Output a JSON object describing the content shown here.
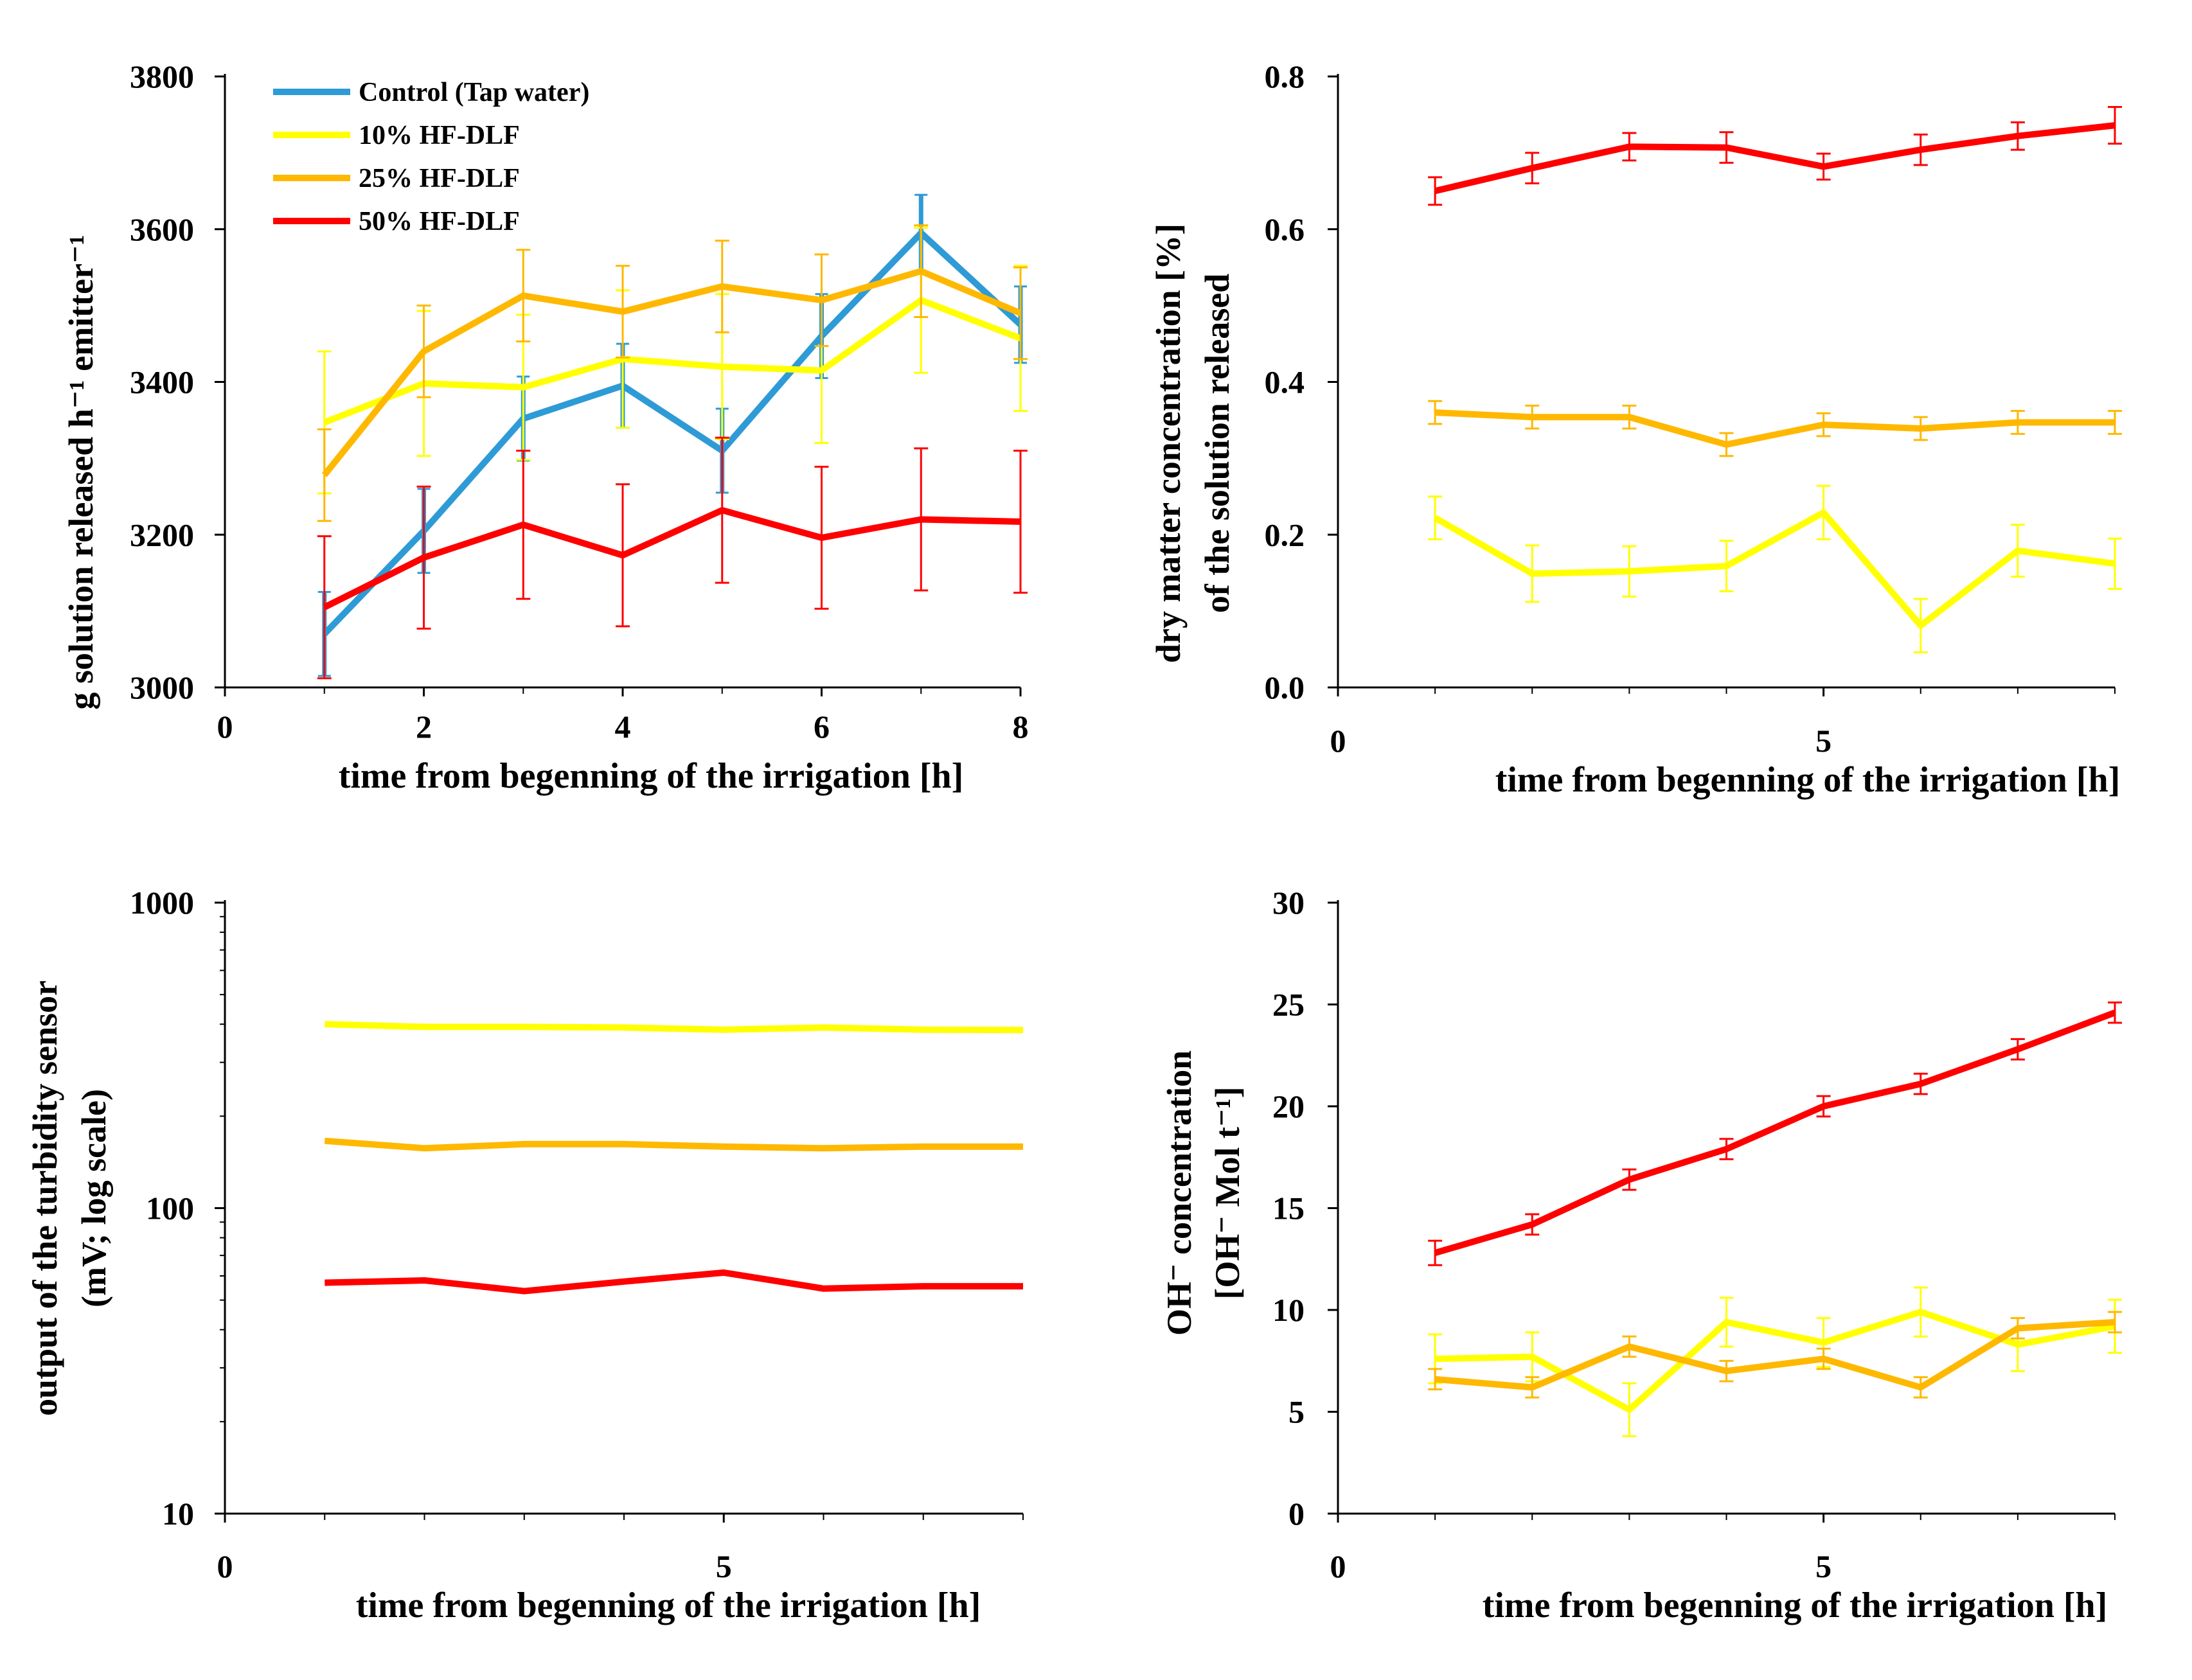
{
  "colors": {
    "control": "#2E9BD6",
    "hf10": "#FFFF00",
    "hf25": "#FFB800",
    "hf50": "#FF0000",
    "axis": "#000000"
  },
  "chart_data": [
    {
      "type": "line",
      "id": "solution_released",
      "xlabel": "time from begenning of the irrigation [h]",
      "ylabel": "g solution released h⁻¹ emitter⁻¹",
      "xlim": [
        0,
        8
      ],
      "ylim": [
        3000,
        3800
      ],
      "xticks": [
        0,
        2,
        4,
        6,
        8
      ],
      "yticks": [
        3000,
        3200,
        3400,
        3600,
        3800
      ],
      "legend_position": "top-left",
      "legend": [
        "Control (Tap water)",
        "10% HF-DLF",
        "25% HF-DLF",
        "50% HF-DLF"
      ],
      "x": [
        1,
        2,
        3,
        4,
        5,
        6,
        7,
        8
      ],
      "series": [
        {
          "name": "Control (Tap water)",
          "color_key": "control",
          "values": [
            3070,
            3205,
            3352,
            3395,
            3310,
            3460,
            3595,
            3475
          ],
          "errors": [
            55,
            55,
            55,
            55,
            55,
            55,
            50,
            50
          ]
        },
        {
          "name": "10% HF-DLF",
          "color_key": "hf10",
          "values": [
            3347,
            3398,
            3393,
            3430,
            3420,
            3415,
            3507,
            3457
          ],
          "errors": [
            93,
            95,
            95,
            90,
            95,
            95,
            95,
            95
          ]
        },
        {
          "name": "25% HF-DLF",
          "color_key": "hf25",
          "values": [
            3278,
            3440,
            3513,
            3492,
            3525,
            3507,
            3545,
            3490
          ],
          "errors": [
            60,
            60,
            60,
            60,
            60,
            60,
            60,
            60
          ]
        },
        {
          "name": "50% HF-DLF",
          "color_key": "hf50",
          "values": [
            3105,
            3170,
            3213,
            3173,
            3232,
            3196,
            3220,
            3217
          ],
          "errors": [
            93,
            93,
            97,
            93,
            95,
            93,
            93,
            93
          ]
        }
      ]
    },
    {
      "type": "line",
      "id": "dry_matter",
      "xlabel": "time from begenning of the irrigation [h]",
      "ylabel_lines": [
        "dry matter concentration [%]",
        "of the solution released"
      ],
      "xlim": [
        0,
        8
      ],
      "ylim": [
        0,
        0.8
      ],
      "xticks": [
        0,
        5
      ],
      "yticks": [
        0.0,
        0.2,
        0.4,
        0.6,
        0.8
      ],
      "x": [
        1,
        2,
        3,
        4,
        5,
        6,
        7,
        8
      ],
      "series": [
        {
          "name": "50% HF-DLF",
          "color_key": "hf50",
          "values": [
            0.65,
            0.68,
            0.708,
            0.707,
            0.682,
            0.704,
            0.722,
            0.736
          ],
          "errors": [
            0.018,
            0.02,
            0.018,
            0.02,
            0.017,
            0.02,
            0.018,
            0.024
          ]
        },
        {
          "name": "25% HF-DLF",
          "color_key": "hf25",
          "values": [
            0.36,
            0.354,
            0.354,
            0.318,
            0.344,
            0.339,
            0.347,
            0.347
          ],
          "errors": [
            0.015,
            0.015,
            0.015,
            0.015,
            0.015,
            0.015,
            0.015,
            0.015
          ]
        },
        {
          "name": "10% HF-DLF",
          "color_key": "hf10",
          "values": [
            0.222,
            0.149,
            0.152,
            0.159,
            0.229,
            0.081,
            0.179,
            0.162
          ],
          "errors": [
            0.028,
            0.037,
            0.033,
            0.033,
            0.035,
            0.035,
            0.034,
            0.033
          ]
        }
      ]
    },
    {
      "type": "line",
      "id": "turbidity",
      "xlabel": "time from begenning of the irrigation [h]",
      "ylabel_lines": [
        "output of the turbidity sensor",
        "(mV; log scale)"
      ],
      "yscale": "log",
      "xlim": [
        0,
        8
      ],
      "ylim": [
        10,
        1000
      ],
      "xticks": [
        0,
        5
      ],
      "yticks": [
        10,
        100,
        1000
      ],
      "x": [
        1,
        2,
        3,
        4,
        5,
        6,
        7,
        8
      ],
      "series": [
        {
          "name": "10% HF-DLF",
          "color_key": "hf10",
          "values": [
            400,
            392,
            392,
            390,
            384,
            390,
            384,
            383
          ]
        },
        {
          "name": "25% HF-DLF",
          "color_key": "hf25",
          "values": [
            166,
            157,
            162,
            162,
            159,
            157,
            159,
            159
          ]
        },
        {
          "name": "50% HF-DLF",
          "color_key": "hf50",
          "values": [
            57,
            58,
            53.5,
            57.5,
            61.5,
            54.5,
            55.5,
            55.5
          ]
        }
      ]
    },
    {
      "type": "line",
      "id": "oh_concentration",
      "xlabel": "time from begenning of the irrigation [h]",
      "ylabel_lines": [
        "OH⁻ concentration",
        "[OH⁻ Mol t⁻¹]"
      ],
      "xlim": [
        0,
        8
      ],
      "ylim": [
        0,
        30
      ],
      "xticks": [
        0,
        5
      ],
      "yticks": [
        0,
        5,
        10,
        15,
        20,
        25,
        30
      ],
      "x": [
        1,
        2,
        3,
        4,
        5,
        6,
        7,
        8
      ],
      "series": [
        {
          "name": "50% HF-DLF",
          "color_key": "hf50",
          "values": [
            12.8,
            14.2,
            16.4,
            17.9,
            20.0,
            21.1,
            22.8,
            24.6
          ],
          "errors": [
            0.6,
            0.5,
            0.5,
            0.5,
            0.5,
            0.5,
            0.5,
            0.5
          ]
        },
        {
          "name": "10% HF-DLF",
          "color_key": "hf10",
          "values": [
            7.6,
            7.7,
            5.1,
            9.4,
            8.4,
            9.9,
            8.3,
            9.2
          ],
          "errors": [
            1.2,
            1.2,
            1.3,
            1.2,
            1.2,
            1.2,
            1.3,
            1.3
          ]
        },
        {
          "name": "25% HF-DLF",
          "color_key": "hf25",
          "values": [
            6.6,
            6.2,
            8.2,
            7.0,
            7.6,
            6.2,
            9.1,
            9.4
          ],
          "errors": [
            0.5,
            0.5,
            0.5,
            0.5,
            0.5,
            0.5,
            0.5,
            0.5
          ]
        }
      ]
    }
  ]
}
